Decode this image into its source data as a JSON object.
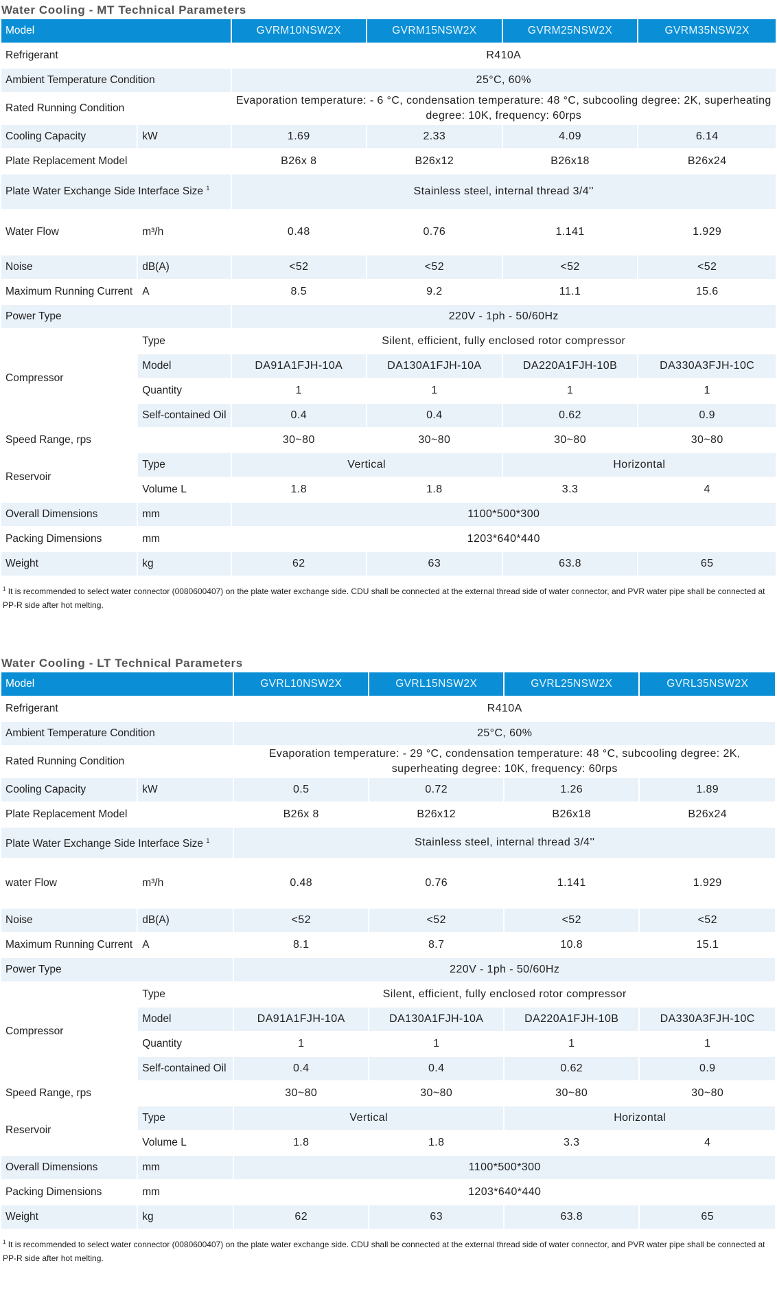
{
  "mt": {
    "title": "Water Cooling - MT Technical Parameters",
    "header": {
      "label": "Model",
      "models": [
        "GVRM10NSW2X",
        "GVRM15NSW2X",
        "GVRM25NSW2X",
        "GVRM35NSW2X"
      ]
    },
    "refrigerant": {
      "label": "Refrigerant",
      "value": "R410A"
    },
    "ambient": {
      "label": "Ambient Temperature Condition",
      "value": "25°C,  60%"
    },
    "rated": {
      "label": "Rated Running Condition",
      "value": "Evaporation temperature: - 6 °C, condensation temperature: 48 °C, subcooling degree: 2K, superheating degree: 10K, frequency: 60rps"
    },
    "cooling": {
      "label": "Cooling Capacity",
      "unit": "kW",
      "values": [
        "1.69",
        "2.33",
        "4.09",
        "6.14"
      ]
    },
    "plate_model": {
      "label": "Plate Replacement Model",
      "values": [
        "B26x 8",
        "B26x12",
        "B26x18",
        "B26x24"
      ]
    },
    "interface": {
      "label": "Plate Water Exchange Side Interface Size",
      "sup": "1",
      "value": "Stainless steel, internal thread 3/4''"
    },
    "water_flow": {
      "label": "Water Flow",
      "unit": "m³/h",
      "values": [
        "0.48",
        "0.76",
        "1.141",
        "1.929"
      ]
    },
    "noise": {
      "label": "Noise",
      "unit": "dB(A)",
      "values": [
        "<52",
        "<52",
        "<52",
        "<52"
      ]
    },
    "current": {
      "label": "Maximum Running Current",
      "unit": "A",
      "values": [
        "8.5",
        "9.2",
        "11.1",
        "15.6"
      ]
    },
    "power": {
      "label": "Power Type",
      "value": "220V - 1ph - 50/60Hz"
    },
    "compressor": {
      "label": "Compressor",
      "type_label": "Type",
      "type_value": "Silent, efficient, fully enclosed rotor compressor",
      "model_label": "Model",
      "models": [
        "DA91A1FJH-10A",
        "DA130A1FJH-10A",
        "DA220A1FJH-10B",
        "DA330A3FJH-10C"
      ],
      "qty_label": "Quantity",
      "qty": [
        "1",
        "1",
        "1",
        "1"
      ],
      "oil_label": "Self-contained Oil",
      "oil": [
        "0.4",
        "0.4",
        "0.62",
        "0.9"
      ]
    },
    "speed": {
      "label": "Speed Range, rps",
      "values": [
        "30~80",
        "30~80",
        "30~80",
        "30~80"
      ]
    },
    "reservoir": {
      "label": "Reservoir",
      "type_label": "Type",
      "vertical": "Vertical",
      "horizontal": "Horizontal",
      "volume_label": "Volume L",
      "volumes": [
        "1.8",
        "1.8",
        "3.3",
        "4"
      ]
    },
    "overall": {
      "label": "Overall Dimensions",
      "unit": "mm",
      "value": "1100*500*300"
    },
    "packing": {
      "label": "Packing Dimensions",
      "unit": "mm",
      "value": "1203*640*440"
    },
    "weight": {
      "label": "Weight",
      "unit": "kg",
      "values": [
        "62",
        "63",
        "63.8",
        "65"
      ]
    },
    "note": "It is recommended to select water connector (0080600407) on the  plate water exchange side. CDU shall be connected at the external thread side of water connector, and PVR water pipe shall be connected at PP-R side after hot melting.",
    "note_sup": "1"
  },
  "lt": {
    "title": "Water Cooling - LT Technical Parameters",
    "header": {
      "label": "Model",
      "models": [
        "GVRL10NSW2X",
        "GVRL15NSW2X",
        "GVRL25NSW2X",
        "GVRL35NSW2X"
      ]
    },
    "refrigerant": {
      "label": "Refrigerant",
      "value": "R410A"
    },
    "ambient": {
      "label": "Ambient Temperature Condition",
      "value": "25°C,  60%"
    },
    "rated": {
      "label": "Rated Running Condition",
      "value": "Evaporation temperature: - 29 °C, condensation temperature: 48 °C, subcooling degree: 2K, superheating degree: 10K, frequency: 60rps"
    },
    "cooling": {
      "label": "Cooling Capacity",
      "unit": "kW",
      "values": [
        "0.5",
        "0.72",
        "1.26",
        "1.89"
      ]
    },
    "plate_model": {
      "label": "Plate Replacement Model",
      "values": [
        "B26x 8",
        "B26x12",
        "B26x18",
        "B26x24"
      ]
    },
    "interface": {
      "label": "Plate Water Exchange Side Interface Size",
      "sup": "1",
      "value": "Stainless steel, internal thread 3/4''"
    },
    "water_flow": {
      "label": "water Flow",
      "unit": "m³/h",
      "values": [
        "0.48",
        "0.76",
        "1.141",
        "1.929"
      ]
    },
    "noise": {
      "label": "Noise",
      "unit": "dB(A)",
      "values": [
        "<52",
        "<52",
        "<52",
        "<52"
      ]
    },
    "current": {
      "label": "Maximum Running Current",
      "unit": "A",
      "values": [
        "8.1",
        "8.7",
        "10.8",
        "15.1"
      ]
    },
    "power": {
      "label": "Power Type",
      "value": "220V - 1ph - 50/60Hz"
    },
    "compressor": {
      "label": "Compressor",
      "type_label": "Type",
      "type_value": "Silent, efficient, fully enclosed rotor compressor",
      "model_label": "Model",
      "models": [
        "DA91A1FJH-10A",
        "DA130A1FJH-10A",
        "DA220A1FJH-10B",
        "DA330A3FJH-10C"
      ],
      "qty_label": "Quantity",
      "qty": [
        "1",
        "1",
        "1",
        "1"
      ],
      "oil_label": "Self-contained Oil",
      "oil": [
        "0.4",
        "0.4",
        "0.62",
        "0.9"
      ]
    },
    "speed": {
      "label": "Speed Range, rps",
      "values": [
        "30~80",
        "30~80",
        "30~80",
        "30~80"
      ]
    },
    "reservoir": {
      "label": "Reservoir",
      "type_label": "Type",
      "vertical": "Vertical",
      "horizontal": "Horizontal",
      "volume_label": "Volume L",
      "volumes": [
        "1.8",
        "1.8",
        "3.3",
        "4"
      ]
    },
    "overall": {
      "label": "Overall Dimensions",
      "unit": "mm",
      "value": "1100*500*300"
    },
    "packing": {
      "label": "Packing Dimensions",
      "unit": "mm",
      "value": "1203*640*440"
    },
    "weight": {
      "label": "Weight",
      "unit": "kg",
      "values": [
        "62",
        "63",
        "63.8",
        "65"
      ]
    },
    "note": "It is recommended to select water connector (0080600407) on the  plate water exchange side. CDU shall be connected at the external thread side of water connector, and PVR water pipe shall be connected at PP-R side after hot melting.",
    "note_sup": "1"
  },
  "colors": {
    "header_bg": "#0a8fd6",
    "header_text": "#ffffff",
    "band_bg": "#e9f1f9",
    "title_text": "#555555"
  }
}
